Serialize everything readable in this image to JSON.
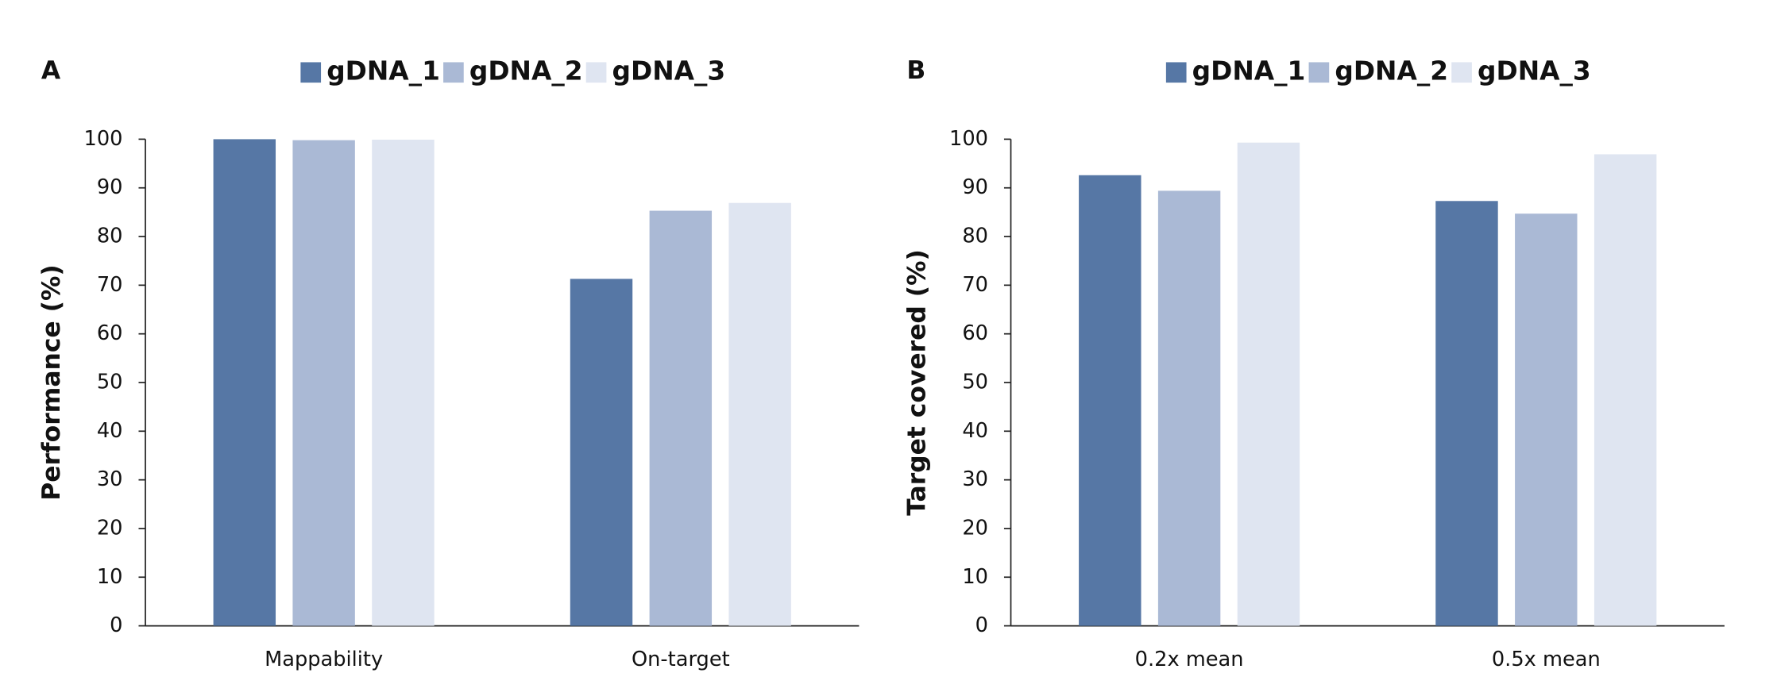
{
  "chart_data": [
    {
      "type": "bar",
      "panel_label": "A",
      "y_label": "Performance (%)",
      "categories": [
        "Mappability",
        "On-target"
      ],
      "series": [
        {
          "name": "gDNA_1",
          "color": "#5677a5",
          "values": [
            100,
            71.3
          ]
        },
        {
          "name": "gDNA_2",
          "color": "#aab9d5",
          "values": [
            99.8,
            85.3
          ]
        },
        {
          "name": "gDNA_3",
          "color": "#dfe5f1",
          "values": [
            99.9,
            86.9
          ]
        }
      ],
      "ylim": [
        0,
        100
      ],
      "yticks": [
        0,
        10,
        20,
        30,
        40,
        50,
        60,
        70,
        80,
        90,
        100
      ],
      "grid": false,
      "legend": "top"
    },
    {
      "type": "bar",
      "panel_label": "B",
      "y_label": "Target covered (%)",
      "categories": [
        "0.2x mean",
        "0.5x mean"
      ],
      "series": [
        {
          "name": "gDNA_1",
          "color": "#5677a5",
          "values": [
            92.6,
            87.3
          ]
        },
        {
          "name": "gDNA_2",
          "color": "#aab9d5",
          "values": [
            89.4,
            84.7
          ]
        },
        {
          "name": "gDNA_3",
          "color": "#dfe5f1",
          "values": [
            99.3,
            96.9
          ]
        }
      ],
      "ylim": [
        0,
        100
      ],
      "yticks": [
        0,
        10,
        20,
        30,
        40,
        50,
        60,
        70,
        80,
        90,
        100
      ],
      "grid": false,
      "legend": "top"
    }
  ]
}
